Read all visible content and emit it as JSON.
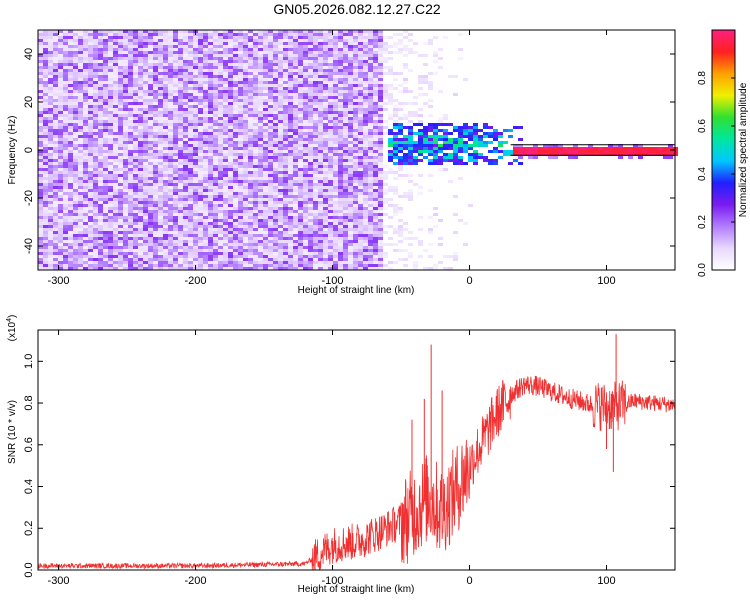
{
  "title": "GN05.2026.082.12.27.C22",
  "chart_data": [
    {
      "type": "heatmap",
      "name": "spectrogram",
      "xlabel": "Height of straight line (km)",
      "ylabel": "Frequency (Hz)",
      "xlim": [
        -315,
        150
      ],
      "ylim": [
        -50,
        50
      ],
      "xticks": [
        "-300",
        "-200",
        "-100",
        "0",
        "100"
      ],
      "xtick_values": [
        -300,
        -200,
        -100,
        0,
        100
      ],
      "yticks": [
        "-40",
        "-20",
        "0",
        "20",
        "40"
      ],
      "ytick_values": [
        -40,
        -20,
        0,
        20,
        40
      ],
      "colorbar": {
        "label": "Normalized spectral amplitude",
        "range": [
          0,
          1
        ],
        "ticks": [
          "0.0",
          "0.2",
          "0.4",
          "0.6",
          "0.8"
        ],
        "tick_values": [
          0.0,
          0.2,
          0.4,
          0.6,
          0.8
        ],
        "colors": [
          "#ffffff",
          "#e9d8ff",
          "#b27cff",
          "#7a1cf0",
          "#2020ff",
          "#00c8ff",
          "#00e6a0",
          "#30e030",
          "#f0f000",
          "#ffa000",
          "#ff2020",
          "#ff2080"
        ]
      },
      "regions": [
        {
          "name": "noise",
          "x": [
            -315,
            -65
          ],
          "freq_range": [
            -50,
            50
          ],
          "amplitude": [
            0.05,
            0.22
          ]
        },
        {
          "name": "fade",
          "x": [
            -65,
            0
          ],
          "freq_range": [
            -50,
            50
          ],
          "amplitude": [
            0.0,
            0.1
          ]
        },
        {
          "name": "scatter-band",
          "x": [
            -62,
            40
          ],
          "freq_range": [
            -6,
            12
          ],
          "amplitude": [
            0.3,
            0.6
          ]
        },
        {
          "name": "signal-line",
          "x": [
            30,
            150
          ],
          "freq_range": [
            -1,
            1
          ],
          "amplitude": [
            0.9,
            1.0
          ]
        }
      ]
    },
    {
      "type": "line",
      "name": "snr",
      "xlabel": "Height of straight line (km)",
      "ylabel": "SNR (10 * v/v)",
      "ymultiplier": "(x10",
      "ymultiplier_exp": "4",
      "ymultiplier_close": ")",
      "xlim": [
        -315,
        150
      ],
      "ylim": [
        0,
        1.15
      ],
      "xticks": [
        "-300",
        "-200",
        "-100",
        "0",
        "100"
      ],
      "xtick_values": [
        -300,
        -200,
        -100,
        0,
        100
      ],
      "yticks": [
        "0.0",
        "0.2",
        "0.4",
        "0.6",
        "0.8",
        "1.0"
      ],
      "ytick_values": [
        0.0,
        0.2,
        0.4,
        0.6,
        0.8,
        1.0
      ],
      "color": "#f03030",
      "trend": [
        [
          -315,
          0.02
        ],
        [
          -200,
          0.02
        ],
        [
          -120,
          0.03
        ],
        [
          -100,
          0.12
        ],
        [
          -80,
          0.14
        ],
        [
          -60,
          0.2
        ],
        [
          -45,
          0.25
        ],
        [
          -30,
          0.35
        ],
        [
          -20,
          0.28
        ],
        [
          -10,
          0.38
        ],
        [
          0,
          0.5
        ],
        [
          10,
          0.62
        ],
        [
          20,
          0.75
        ],
        [
          30,
          0.84
        ],
        [
          40,
          0.89
        ],
        [
          50,
          0.88
        ],
        [
          70,
          0.83
        ],
        [
          90,
          0.79
        ],
        [
          105,
          0.78
        ],
        [
          120,
          0.81
        ],
        [
          150,
          0.79
        ]
      ],
      "spikes": [
        {
          "x": -28,
          "y": 1.08
        },
        {
          "x": -42,
          "y": 0.72
        },
        {
          "x": -33,
          "y": 0.82
        },
        {
          "x": -20,
          "y": 0.86
        },
        {
          "x": 107,
          "y": 1.13
        },
        {
          "x": 105,
          "y": 0.47
        },
        {
          "x": 100,
          "y": 0.58
        }
      ]
    }
  ]
}
